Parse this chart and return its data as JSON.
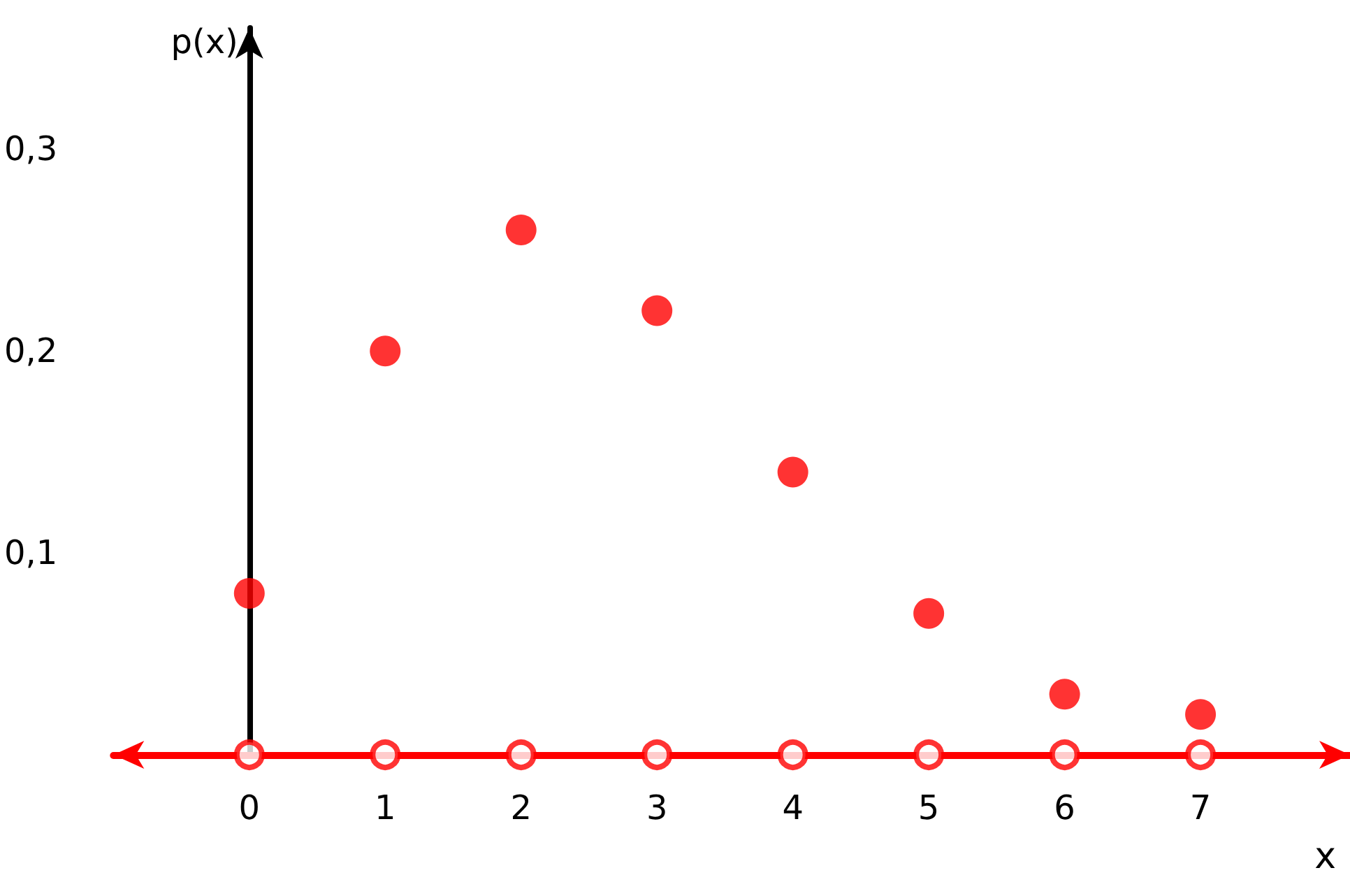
{
  "chart_data": {
    "type": "scatter",
    "xlabel": "x",
    "ylabel": "p(x)",
    "x": [
      0,
      1,
      2,
      3,
      4,
      5,
      6,
      7
    ],
    "series": [
      {
        "color": "#ff0000",
        "values": [
          0.08,
          0.2,
          0.26,
          0.22,
          0.14,
          0.07,
          0.03,
          0.02
        ]
      },
      {
        "color": "#ff0000",
        "values": [
          0,
          0,
          0,
          0,
          0,
          0,
          0,
          0
        ]
      }
    ],
    "xlim": [
      -1,
      8.1
    ],
    "xticks": [
      0,
      1,
      2,
      3,
      4,
      5,
      6,
      7
    ],
    "ylim": [
      0,
      0.36
    ],
    "yticks": [
      {
        "value": 0.1,
        "label": "0,1"
      },
      {
        "value": 0.2,
        "label": "0,2"
      },
      {
        "value": 0.3,
        "label": "0,3"
      }
    ],
    "marker": "circle"
  }
}
